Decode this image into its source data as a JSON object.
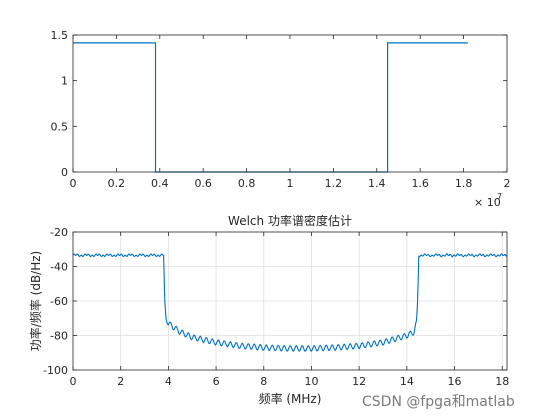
{
  "chart_data": [
    {
      "type": "line",
      "title": "",
      "xlabel": "",
      "ylabel": "",
      "xlim": [
        0,
        2
      ],
      "ylim": [
        0,
        1.5
      ],
      "x_ticks": [
        0,
        0.2,
        0.4,
        0.6,
        0.8,
        1,
        1.2,
        1.4,
        1.6,
        1.8,
        2
      ],
      "x_tick_labels": [
        "0",
        "0.2",
        "0.4",
        "0.6",
        "0.8",
        "1",
        "1.2",
        "1.4",
        "1.6",
        "1.8",
        "2"
      ],
      "y_ticks": [
        0,
        0.5,
        1,
        1.5
      ],
      "y_tick_labels": [
        "0",
        "0.5",
        "1",
        "1.5"
      ],
      "x_exponent_base": "× 10",
      "x_exponent_power": "7",
      "grid": false,
      "series": [
        {
          "color": "#0072BD",
          "x": [
            0,
            0.38,
            0.38,
            1.45,
            1.45,
            1.82
          ],
          "y": [
            1.414,
            1.414,
            0,
            0,
            1.414,
            1.414
          ]
        }
      ]
    },
    {
      "type": "line",
      "title": "Welch 功率谱密度估计",
      "xlabel": "频率 (MHz)",
      "ylabel": "功率/频率 (dB/Hz)",
      "xlim": [
        0,
        18.2
      ],
      "ylim": [
        -100,
        -20
      ],
      "x_ticks": [
        0,
        2,
        4,
        6,
        8,
        10,
        12,
        14,
        16,
        18
      ],
      "x_tick_labels": [
        "0",
        "2",
        "4",
        "6",
        "8",
        "10",
        "12",
        "14",
        "16",
        "18"
      ],
      "y_ticks": [
        -100,
        -80,
        -60,
        -40,
        -20
      ],
      "y_tick_labels": [
        "-100",
        "-80",
        "-60",
        "-40",
        "-20"
      ],
      "grid": true,
      "series": [
        {
          "color": "#0072BD",
          "x": [
            0,
            3.8,
            3.85,
            3.9,
            4.0,
            4.5,
            5,
            6,
            7,
            8,
            9,
            10,
            11,
            12,
            13,
            14,
            14.3,
            14.4,
            14.45,
            14.5,
            18.2
          ],
          "y": [
            -33.5,
            -33.5,
            -60,
            -70,
            -73,
            -78,
            -81,
            -84,
            -86,
            -87,
            -87.5,
            -87.5,
            -87,
            -86,
            -84,
            -80,
            -78,
            -73,
            -60,
            -33.5,
            -33.5
          ]
        }
      ]
    }
  ],
  "watermark": "CSDN @fpga和matlab"
}
